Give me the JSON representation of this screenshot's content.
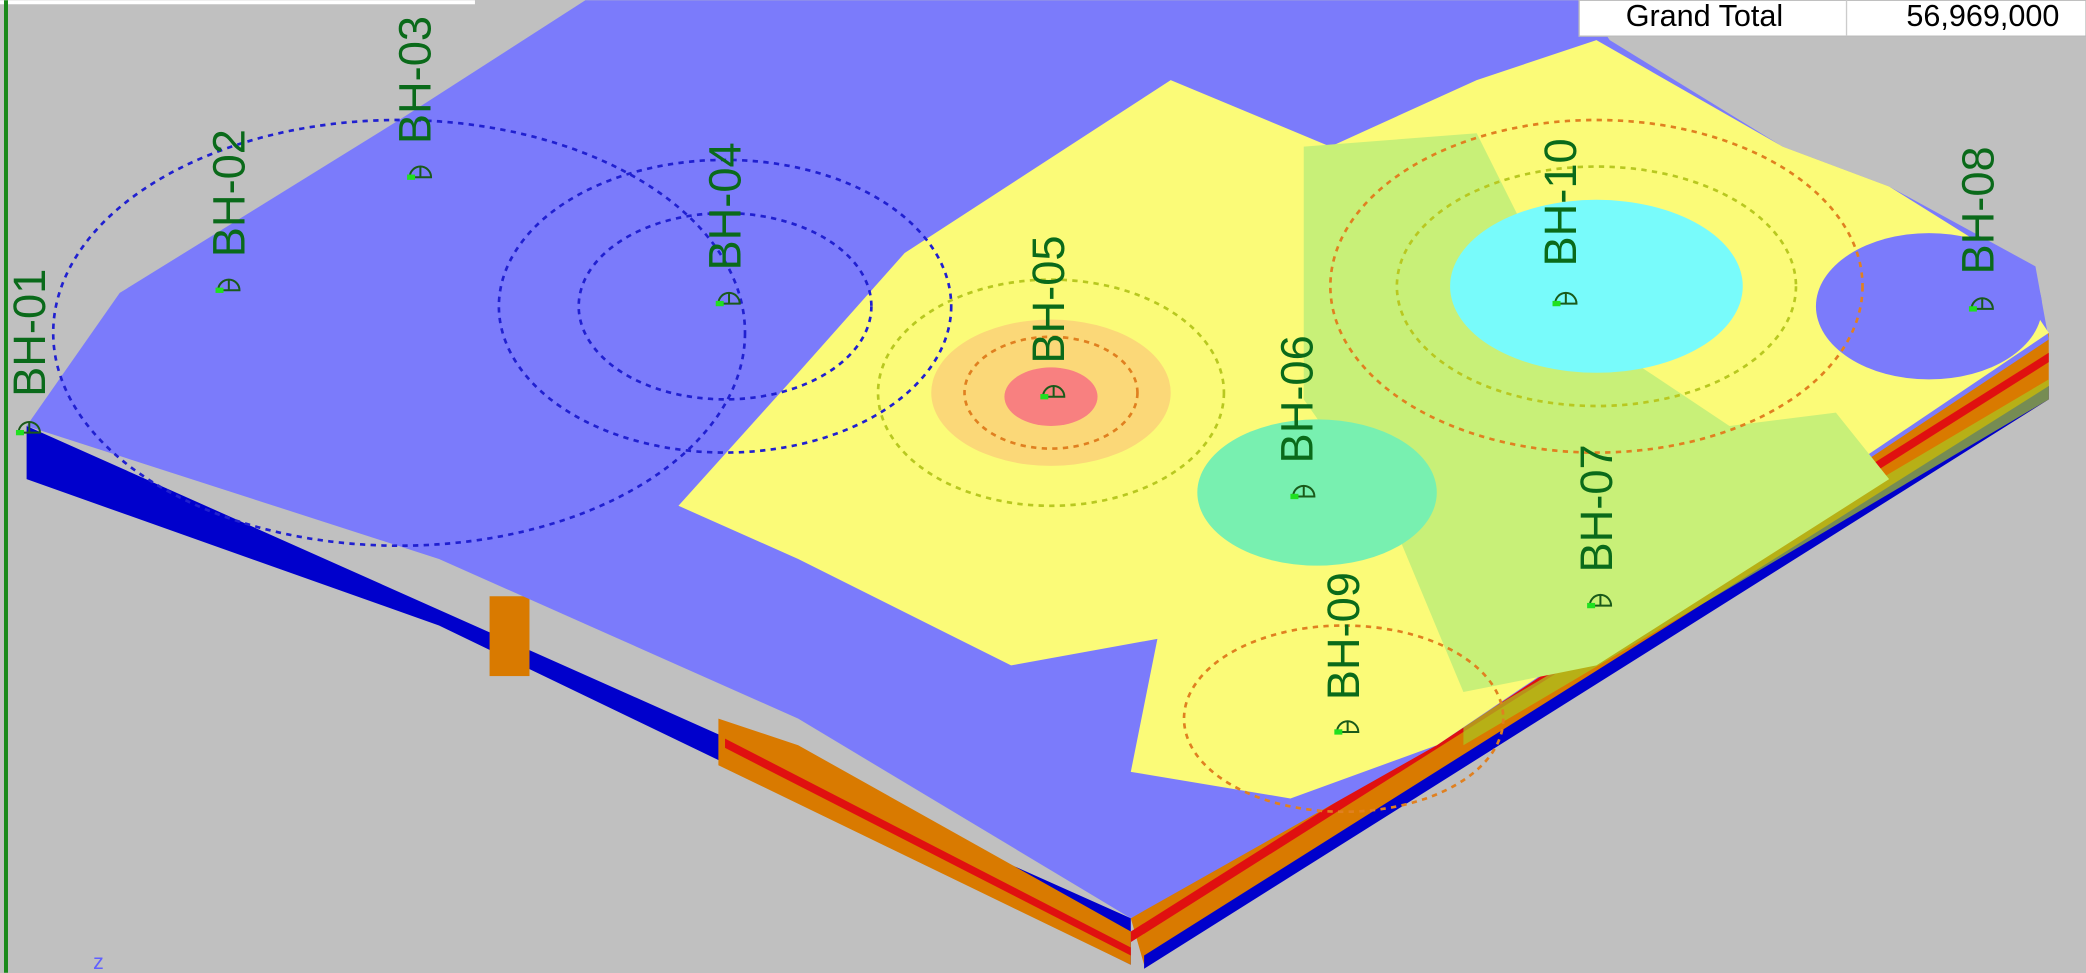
{
  "boreholes": [
    {
      "label": "BH-01"
    },
    {
      "label": "BH-02"
    },
    {
      "label": "BH-03"
    },
    {
      "label": "BH-04"
    },
    {
      "label": "BH-05"
    },
    {
      "label": "BH-06"
    },
    {
      "label": "BH-07"
    },
    {
      "label": "BH-08"
    },
    {
      "label": "BH-09"
    },
    {
      "label": "BH-10"
    }
  ],
  "table": {
    "label": "Grand Total",
    "value": "56,969,000"
  },
  "axis_label": "z"
}
